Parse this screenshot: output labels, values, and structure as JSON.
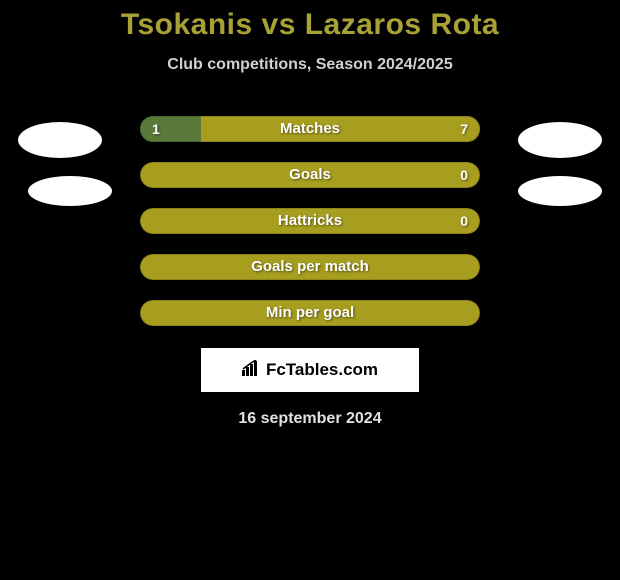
{
  "title": "Tsokanis vs Lazaros Rota",
  "subtitle": "Club competitions, Season 2024/2025",
  "date": "16 september 2024",
  "logo_text": "FcTables.com",
  "colors": {
    "background": "#000000",
    "title_color": "#a8a135",
    "subtitle_color": "#d0d0d0",
    "bar_empty": "#a79e1f",
    "bar_left_fill": "#5a7a3a",
    "bar_right_fill": "#a79e1f",
    "avatar_color": "#ffffff",
    "logo_bg": "#ffffff",
    "stat_text": "#ffffff"
  },
  "stats": [
    {
      "label": "Matches",
      "left_value": "1",
      "right_value": "7",
      "left_pct": 18,
      "right_pct": 82,
      "left_color": "#5a7a3a",
      "right_color": "#a79e1f",
      "show_values": true
    },
    {
      "label": "Goals",
      "left_value": "0",
      "right_value": "0",
      "left_pct": 0,
      "right_pct": 0,
      "left_color": "#5a7a3a",
      "right_color": "#a79e1f",
      "bg_color": "#a79e1f",
      "show_values": true,
      "show_left_value": false
    },
    {
      "label": "Hattricks",
      "left_value": "0",
      "right_value": "0",
      "left_pct": 0,
      "right_pct": 0,
      "left_color": "#5a7a3a",
      "right_color": "#a79e1f",
      "bg_color": "#a79e1f",
      "show_values": true,
      "show_left_value": false
    },
    {
      "label": "Goals per match",
      "left_value": "",
      "right_value": "",
      "left_pct": 0,
      "right_pct": 0,
      "bg_color": "#a79e1f",
      "show_values": false
    },
    {
      "label": "Min per goal",
      "left_value": "",
      "right_value": "",
      "left_pct": 0,
      "right_pct": 0,
      "bg_color": "#a79e1f",
      "show_values": false
    }
  ]
}
